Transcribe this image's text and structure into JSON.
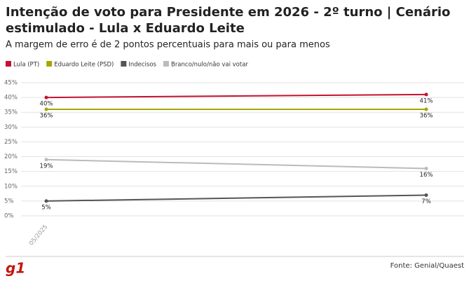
{
  "chart_data": {
    "type": "line",
    "title": "Intenção de voto para Presidente em 2026 - 2º turno | Cenário estimulado - Lula x Eduardo Leite",
    "subtitle": "A margem de erro é de 2 pontos percentuais para mais ou para menos",
    "categories": [
      "05/2025",
      null
    ],
    "series": [
      {
        "name": "Lula (PT)",
        "color": "#c4122f",
        "values": [
          40,
          41
        ],
        "value_labels": [
          "40%",
          "41%"
        ]
      },
      {
        "name": "Eduardo Leite (PSD)",
        "color": "#a6a600",
        "values": [
          36,
          36
        ],
        "value_labels": [
          "36%",
          "36%"
        ]
      },
      {
        "name": "Indecisos",
        "color": "#555555",
        "values": [
          5,
          7
        ],
        "value_labels": [
          "5%",
          "7%"
        ]
      },
      {
        "name": "Branco/nulo/não vai votar",
        "color": "#bbbbbb",
        "values": [
          19,
          16
        ],
        "value_labels": [
          "19%",
          "16%"
        ]
      }
    ],
    "ylim": [
      0,
      45
    ],
    "yticks": [
      {
        "value": 0,
        "label": "0%"
      },
      {
        "value": 5,
        "label": "5%"
      },
      {
        "value": 10,
        "label": "10%"
      },
      {
        "value": 15,
        "label": "15%"
      },
      {
        "value": 20,
        "label": "20%"
      },
      {
        "value": 25,
        "label": "25%"
      },
      {
        "value": 30,
        "label": "30%"
      },
      {
        "value": 35,
        "label": "35%"
      },
      {
        "value": 40,
        "label": "40%"
      },
      {
        "value": 45,
        "label": "45%"
      }
    ],
    "grid": true,
    "logo": "g1",
    "source": "Fonte: Genial/Quaest"
  }
}
